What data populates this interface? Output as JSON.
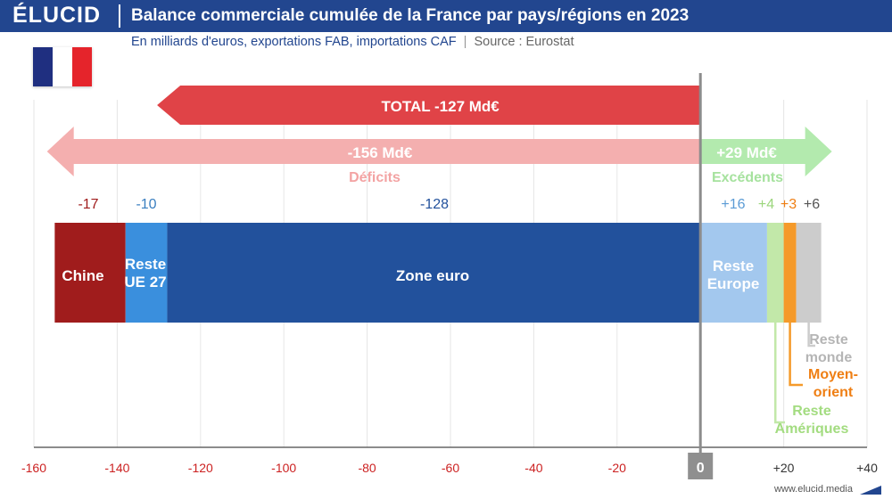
{
  "brand": {
    "logo": "ÉLUCID",
    "url": "www.elucid.media"
  },
  "header": {
    "title": "Balance commerciale cumulée de la France par pays/régions en 2023",
    "subtitle": "En milliards d'euros, exportations FAB, importations CAF",
    "separator": "|",
    "source": "Source : Eurostat"
  },
  "flag": {
    "name": "France",
    "colors": [
      "#1f2f80",
      "#ffffff",
      "#e5242b"
    ]
  },
  "chart_data": {
    "type": "bar",
    "orientation": "horizontal-stacked",
    "title": "Balance commerciale cumulée de la France par pays/régions en 2023",
    "unit": "Md€",
    "xlim": [
      -160,
      40
    ],
    "zero_label": "0",
    "ticks": [
      {
        "value": -160,
        "label": "-160"
      },
      {
        "value": -140,
        "label": "-140"
      },
      {
        "value": -120,
        "label": "-120"
      },
      {
        "value": -100,
        "label": "-100"
      },
      {
        "value": -80,
        "label": "-80"
      },
      {
        "value": -60,
        "label": "-60"
      },
      {
        "value": -40,
        "label": "-40"
      },
      {
        "value": -20,
        "label": "-20"
      },
      {
        "value": 20,
        "label": "+20"
      },
      {
        "value": 40,
        "label": "+40"
      }
    ],
    "segments": [
      {
        "name": "Chine",
        "label_lines": [
          "Chine"
        ],
        "value": -17,
        "value_label": "-17",
        "color": "#a01c1c",
        "value_color": "#a01c1c",
        "label_color": "#ffffff"
      },
      {
        "name": "Reste UE 27",
        "label_lines": [
          "Reste",
          "UE 27"
        ],
        "value": -10,
        "value_label": "-10",
        "color": "#3a8fdd",
        "value_color": "#3a7fc0",
        "label_color": "#ffffff"
      },
      {
        "name": "Zone euro",
        "label_lines": [
          "Zone euro"
        ],
        "value": -128,
        "value_label": "-128",
        "color": "#22519c",
        "value_color": "#22519c",
        "label_color": "#ffffff"
      },
      {
        "name": "Reste Europe",
        "label_lines": [
          "Reste",
          "Europe"
        ],
        "value": 16,
        "value_label": "+16",
        "color": "#a3c8ee",
        "value_color": "#5b9bd5",
        "label_color": "#ffffff"
      },
      {
        "name": "Reste Amériques",
        "label_lines": [
          "Reste",
          "Amériques"
        ],
        "value": 4,
        "value_label": "+4",
        "color": "#c2e8a9",
        "value_color": "#9bd67c",
        "label_color": "#a3dc80"
      },
      {
        "name": "Moyen-orient",
        "label_lines": [
          "Moyen-",
          "orient"
        ],
        "value": 3,
        "value_label": "+3",
        "color": "#f59a2a",
        "value_color": "#ef7f14",
        "label_color": "#ef7f14"
      },
      {
        "name": "Reste monde",
        "label_lines": [
          "Reste",
          "monde"
        ],
        "value": 6,
        "value_label": "+6",
        "color": "#cccccc",
        "value_color": "#555555",
        "label_color": "#b5b5b5"
      }
    ],
    "total": {
      "value": -127,
      "label": "TOTAL -127 Md€",
      "color": "#e04347"
    },
    "deficits": {
      "value": -156,
      "label": "-156 Md€",
      "caption": "Déficits",
      "color": "#f4afaf"
    },
    "surpluses": {
      "value": 29,
      "label": "+29 Md€",
      "caption": "Excédents",
      "color": "#b3eaae"
    }
  }
}
